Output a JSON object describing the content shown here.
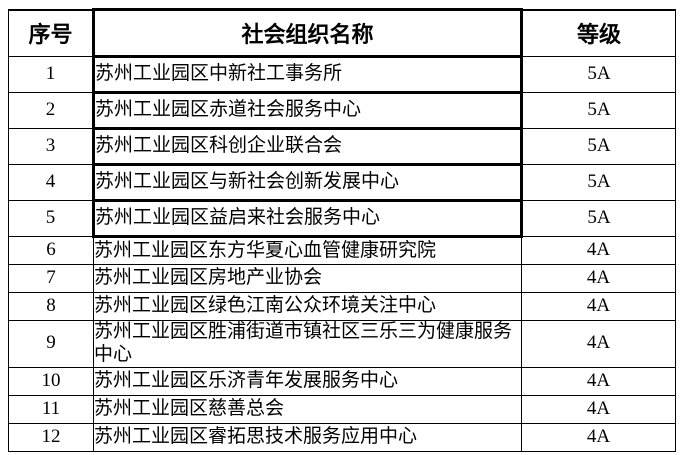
{
  "table": {
    "headers": [
      {
        "label": "序号"
      },
      {
        "label": "社会组织名称"
      },
      {
        "label": "等级"
      }
    ],
    "rows": [
      {
        "no": "1",
        "name": "苏州工业园区中新社工事务所",
        "grade": "5A"
      },
      {
        "no": "2",
        "name": "苏州工业园区赤道社会服务中心",
        "grade": "5A"
      },
      {
        "no": "3",
        "name": "苏州工业园区科创企业联合会",
        "grade": "5A"
      },
      {
        "no": "4",
        "name": "苏州工业园区与新社会创新发展中心",
        "grade": "5A"
      },
      {
        "no": "5",
        "name": "苏州工业园区益启来社会服务中心",
        "grade": "5A"
      },
      {
        "no": "6",
        "name": "苏州工业园区东方华夏心血管健康研究院",
        "grade": "4A"
      },
      {
        "no": "7",
        "name": "苏州工业园区房地产业协会",
        "grade": "4A"
      },
      {
        "no": "8",
        "name": "苏州工业园区绿色江南公众环境关注中心",
        "grade": "4A"
      },
      {
        "no": "9",
        "name": "苏州工业园区胜浦街道市镇社区三乐三为健康服务中心",
        "grade": "4A"
      },
      {
        "no": "10",
        "name": "苏州工业园区乐济青年发展服务中心",
        "grade": "4A"
      },
      {
        "no": "11",
        "name": "苏州工业园区慈善总会",
        "grade": "4A"
      },
      {
        "no": "12",
        "name": "苏州工业园区睿拓思技术服务应用中心",
        "grade": "4A"
      }
    ],
    "colors": {
      "border": "#000000",
      "text": "#000000",
      "background": "#ffffff"
    }
  }
}
